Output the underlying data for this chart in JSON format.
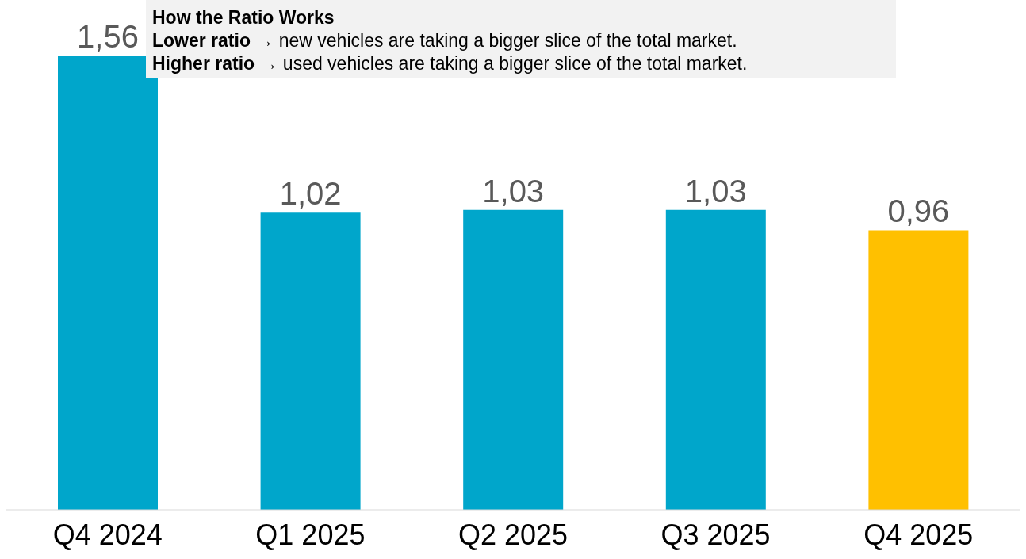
{
  "chart_data": {
    "type": "bar",
    "categories": [
      "Q4 2024",
      "Q1 2025",
      "Q2 2025",
      "Q3 2025",
      "Q4 2025"
    ],
    "values": [
      1.56,
      1.02,
      1.03,
      1.03,
      0.96
    ],
    "colors": [
      "#00a6cb",
      "#00a6cb",
      "#00a6cb",
      "#00a6cb",
      "#ffc000"
    ],
    "value_labels": [
      "1,56",
      "1,02",
      "1,03",
      "1,03",
      "0,96"
    ],
    "annotations": [
      "How the Ratio Works",
      "Lower ratio → new vehicles are taking a bigger slice of the total market.",
      "Higher ratio → used vehicles are taking a bigger slice of the total market."
    ]
  }
}
